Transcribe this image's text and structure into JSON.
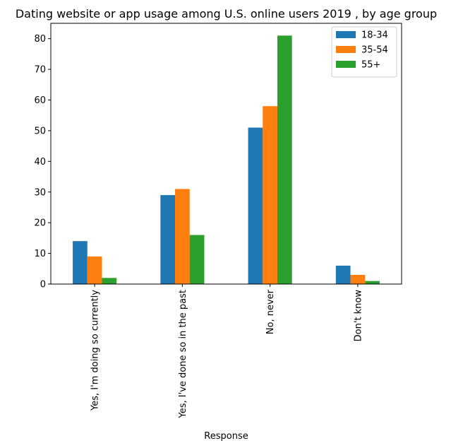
{
  "chart_data": {
    "type": "bar",
    "title": "Dating website or app usage among U.S. online users 2019 , by age group",
    "xlabel": "Response",
    "ylabel": "",
    "categories": [
      "Yes, I'm doing so currently",
      "Yes, I've done so in the past",
      "No, never",
      "Don't know"
    ],
    "series": [
      {
        "name": "18-34",
        "color": "#1f77b4",
        "values": [
          14,
          29,
          51,
          6
        ]
      },
      {
        "name": "35-54",
        "color": "#ff7f0e",
        "values": [
          9,
          31,
          58,
          3
        ]
      },
      {
        "name": "55+",
        "color": "#2ca02c",
        "values": [
          2,
          16,
          81,
          1
        ]
      }
    ],
    "ylim": [
      0,
      85
    ],
    "yticks": [
      0,
      10,
      20,
      30,
      40,
      50,
      60,
      70,
      80
    ],
    "grid": false,
    "legend_position": "top-right"
  }
}
